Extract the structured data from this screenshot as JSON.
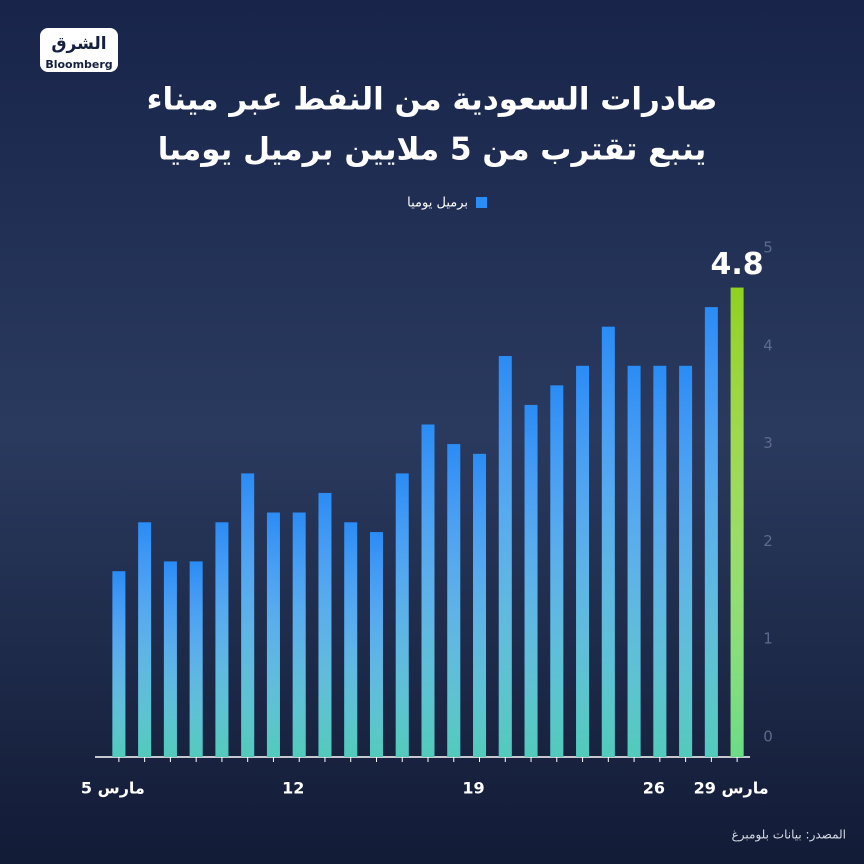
{
  "logo": {
    "brand": "الشرق",
    "partner": "Bloomberg"
  },
  "chart_data": {
    "type": "bar",
    "title": "صادرات السعودية من النفط عبر ميناء",
    "subtitle": "ينبع تقترب من 5 ملايين برميل يوميا",
    "categories": [
      "5 مارس",
      null,
      null,
      null,
      null,
      null,
      null,
      "12",
      null,
      null,
      null,
      null,
      null,
      null,
      "19",
      null,
      null,
      null,
      null,
      null,
      null,
      "26",
      null,
      null,
      "29 مارس"
    ],
    "series": [
      {
        "name": "برميل يوميا",
        "color": "#2a8cf5",
        "colors": [
          "#2a8cf5",
          "#2a8cf5",
          "#2a8cf5",
          "#2a8cf5",
          "#2a8cf5",
          "#2a8cf5",
          "#2a8cf5",
          "#2a8cf5",
          "#2a8cf5",
          "#2a8cf5",
          "#2a8cf5",
          "#2a8cf5",
          "#2a8cf5",
          "#2a8cf5",
          "#2a8cf5",
          "#2a8cf5",
          "#2a8cf5",
          "#2a8cf5",
          "#2a8cf5",
          "#2a8cf5",
          "#2a8cf5",
          "#2a8cf5",
          "#2a8cf5",
          "#2a8cf5",
          "#8ed11f"
        ],
        "values": [
          1.9,
          2.4,
          2.0,
          2.0,
          2.4,
          2.9,
          2.5,
          2.5,
          2.7,
          2.4,
          2.3,
          2.9,
          3.4,
          3.2,
          3.1,
          4.1,
          3.6,
          3.8,
          4.0,
          4.4,
          4.0,
          4.0,
          4.0,
          4.6,
          4.8
        ],
        "value_labels": [
          null,
          null,
          null,
          null,
          null,
          null,
          null,
          null,
          null,
          null,
          null,
          null,
          null,
          null,
          null,
          null,
          null,
          null,
          null,
          null,
          null,
          null,
          null,
          null,
          "4.8"
        ]
      }
    ],
    "ylim": [
      0,
      5
    ],
    "yticks": [
      0,
      1,
      2,
      3,
      4,
      5
    ],
    "source": "المصدر: بيانات بلومبرغ"
  }
}
